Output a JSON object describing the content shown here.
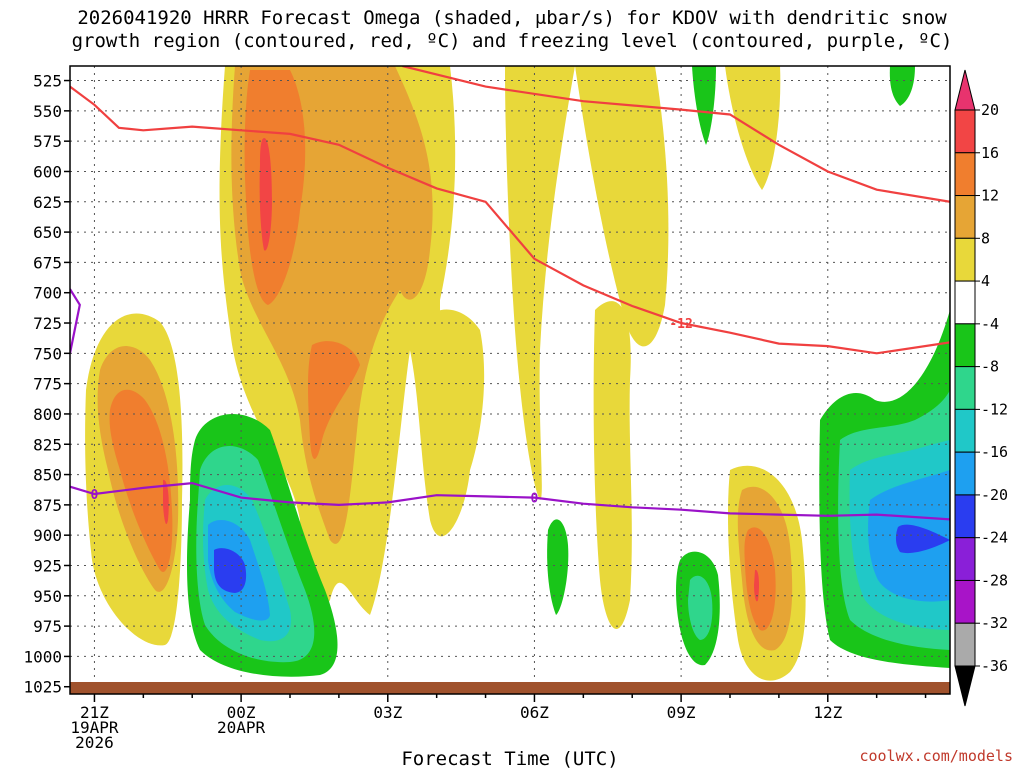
{
  "chart_data": {
    "type": "time-height cross-section",
    "title_lines": [
      "2026041920 HRRR Forecast Omega (shaded, μbar/s) for KDOV with dendritic snow",
      "growth region (contoured, red, ºC) and freezing level (contoured, purple, ºC)"
    ],
    "xlabel": "Forecast Time (UTC)",
    "credit": "coolwx.com/models",
    "y_axis": {
      "label_values": [
        525,
        550,
        575,
        600,
        625,
        650,
        675,
        700,
        725,
        750,
        775,
        800,
        825,
        850,
        875,
        900,
        925,
        950,
        975,
        1000,
        1025
      ],
      "range_hpa": [
        513,
        1031
      ]
    },
    "x_axis": {
      "range_hours": [
        -0.5,
        17.5
      ],
      "ticks": [
        {
          "hour": 0,
          "lines": [
            "21Z",
            "19APR",
            "2026"
          ]
        },
        {
          "hour": 3,
          "lines": [
            "00Z",
            "20APR"
          ]
        },
        {
          "hour": 6,
          "lines": [
            "03Z"
          ]
        },
        {
          "hour": 9,
          "lines": [
            "06Z"
          ]
        },
        {
          "hour": 12,
          "lines": [
            "09Z"
          ]
        },
        {
          "hour": 15,
          "lines": [
            "12Z"
          ]
        }
      ]
    },
    "colorbar": {
      "levels": [
        20,
        16,
        12,
        8,
        4,
        -4,
        -8,
        -12,
        -16,
        -20,
        -24,
        -28,
        -32,
        -36
      ],
      "colors": [
        "#e8336e",
        "#f24545",
        "#f07e2e",
        "#e6a535",
        "#e8d83a",
        "#ffffff",
        "#19c519",
        "#2fd68c",
        "#20c8c8",
        "#1ea0f0",
        "#2a3df0",
        "#8a1fd8",
        "#a814c8",
        "#aaaaaa",
        "#000000"
      ]
    },
    "omega_regions": [
      {
        "value_band": "4 to 8",
        "color": "#e8d83a",
        "description": "large positive (sinking) region from 00Z to 09Z, 525-950 hPa"
      },
      {
        "value_band": "12 to 16",
        "color": "#f07e2e",
        "description": "core near 00Z, 550-700 hPa"
      },
      {
        "value_band": "16 to 20",
        "color": "#f24545",
        "description": "max near 00Z, 575-630 hPa"
      },
      {
        "value_band": "-4 to -24",
        "color": "#2a3df0",
        "description": "rising motion near 23Z, 825-1000 hPa, min near 900 hPa"
      },
      {
        "value_band": "-4 to -24",
        "color": "#1ea0f0",
        "description": "rising motion 11Z-14Z, 750-990 hPa"
      }
    ],
    "contours": [
      {
        "name": "dendritic growth -12C",
        "color": "#f04040",
        "label": "-12",
        "points_hour_hpa": [
          [
            -0.5,
            530
          ],
          [
            0,
            545
          ],
          [
            0.5,
            564
          ],
          [
            1,
            566
          ],
          [
            2,
            563
          ],
          [
            3,
            566
          ],
          [
            4,
            569
          ],
          [
            5,
            578
          ],
          [
            6,
            597
          ],
          [
            7,
            614
          ],
          [
            8,
            625
          ],
          [
            9,
            672
          ],
          [
            10,
            694
          ],
          [
            11,
            711
          ],
          [
            12,
            725
          ],
          [
            13,
            733
          ],
          [
            14,
            742
          ],
          [
            15,
            744
          ],
          [
            16,
            750
          ],
          [
            17.5,
            741
          ]
        ]
      },
      {
        "name": "dendritic growth -18C",
        "color": "#f04040",
        "label": "",
        "points_hour_hpa": [
          [
            6.3,
            513
          ],
          [
            8,
            530
          ],
          [
            10,
            542
          ],
          [
            12,
            549
          ],
          [
            13,
            553
          ],
          [
            14,
            578
          ],
          [
            15,
            600
          ],
          [
            16,
            615
          ],
          [
            17.5,
            625
          ]
        ]
      },
      {
        "name": "freezing level 0C",
        "color": "#9a12c8",
        "label": "0",
        "points_hour_hpa": [
          [
            -0.5,
            860
          ],
          [
            0,
            866
          ],
          [
            1,
            861
          ],
          [
            2,
            857
          ],
          [
            3,
            869
          ],
          [
            4,
            873
          ],
          [
            5,
            875
          ],
          [
            6,
            873
          ],
          [
            7,
            867
          ],
          [
            8,
            868
          ],
          [
            9,
            869
          ],
          [
            10,
            874
          ],
          [
            11,
            877
          ],
          [
            12,
            879
          ],
          [
            13,
            882
          ],
          [
            14,
            883
          ],
          [
            15,
            884
          ],
          [
            16,
            883
          ],
          [
            17.5,
            887
          ]
        ]
      },
      {
        "name": "freezing level 0C secondary",
        "color": "#9a12c8",
        "label": "",
        "points_hour_hpa": [
          [
            -0.5,
            697
          ],
          [
            -0.3,
            710
          ],
          [
            -0.5,
            750
          ]
        ]
      }
    ],
    "terrain_band_hpa": [
      1022,
      1031
    ]
  }
}
